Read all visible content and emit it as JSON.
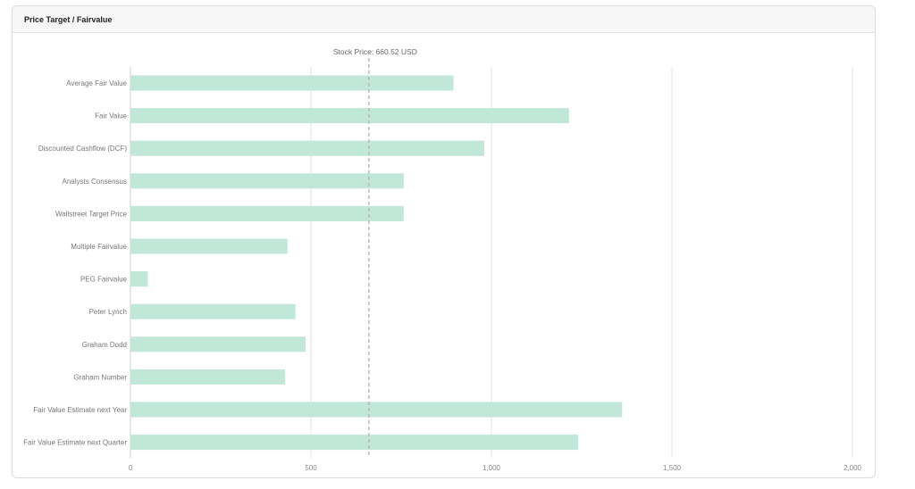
{
  "card": {
    "title": "Price Target / Fairvalue"
  },
  "chart_data": {
    "type": "bar",
    "orientation": "horizontal",
    "categories": [
      "Average Fair Value",
      "Fair Value",
      "Discounted Cashflow (DCF)",
      "Analysts Consensus",
      "Wallstreet Target Price",
      "Multiple Fairvalue",
      "PEG Fairvalue",
      "Peter Lynch",
      "Graham Dodd",
      "Graham Number",
      "Fair Value Estimate next Year",
      "Fair Value Estimate next Quarter"
    ],
    "values": [
      895,
      1215,
      980,
      757,
      757,
      435,
      48,
      457,
      485,
      428,
      1362,
      1240
    ],
    "xlim": [
      0,
      2000
    ],
    "xticks": [
      0,
      500,
      1000,
      1500,
      2000
    ],
    "xtick_labels": [
      "0",
      "500",
      "1,000",
      "1,500",
      "2,000"
    ],
    "reference_line": {
      "value": 660.52,
      "label": "Stock Price: 660.52 USD"
    },
    "bar_color": "#c0e7d7",
    "grid": true
  }
}
